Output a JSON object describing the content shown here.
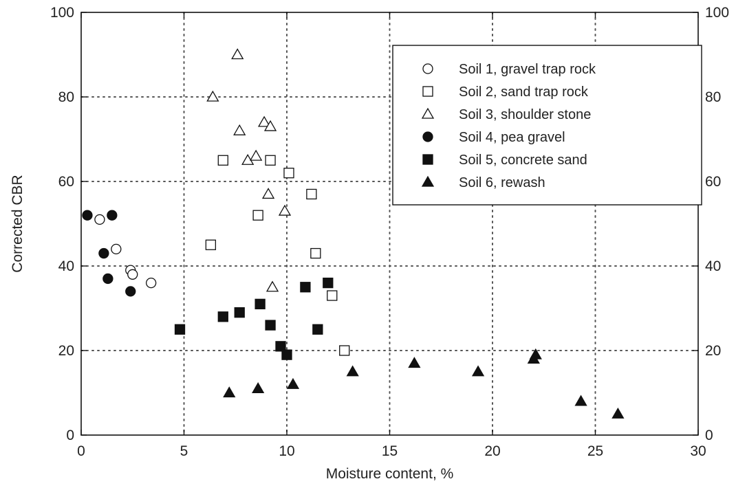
{
  "chart_data": {
    "type": "scatter",
    "title": "",
    "xlabel": "Moisture content, %",
    "ylabel": "Corrected CBR",
    "xlim": [
      0,
      30
    ],
    "ylim": [
      0,
      100
    ],
    "xticks": [
      0,
      5,
      10,
      15,
      20,
      25,
      30
    ],
    "yticks": [
      0,
      20,
      40,
      60,
      80,
      100
    ],
    "right_axis_ticks": [
      0,
      20,
      40,
      60,
      80,
      100
    ],
    "grid": true,
    "grid_style": "dotted",
    "legend_position": "top-right",
    "colors": {
      "ink": "#111111",
      "grid": "#555555",
      "background": "#ffffff"
    },
    "series": [
      {
        "name": "Soil 1, gravel trap rock",
        "marker": "circle-open",
        "points": [
          [
            0.9,
            51
          ],
          [
            1.7,
            44
          ],
          [
            2.4,
            39
          ],
          [
            2.5,
            38
          ],
          [
            3.4,
            36
          ]
        ]
      },
      {
        "name": "Soil 2, sand trap rock",
        "marker": "square-open",
        "points": [
          [
            6.3,
            45
          ],
          [
            6.9,
            65
          ],
          [
            8.6,
            52
          ],
          [
            9.2,
            65
          ],
          [
            10.1,
            62
          ],
          [
            11.2,
            57
          ],
          [
            11.4,
            43
          ],
          [
            12.2,
            33
          ],
          [
            12.8,
            20
          ]
        ]
      },
      {
        "name": "Soil 3, shoulder stone",
        "marker": "triangle-open",
        "points": [
          [
            6.4,
            80
          ],
          [
            7.6,
            90
          ],
          [
            7.7,
            72
          ],
          [
            8.1,
            65
          ],
          [
            8.5,
            66
          ],
          [
            8.9,
            74
          ],
          [
            9.1,
            57
          ],
          [
            9.2,
            73
          ],
          [
            9.3,
            35
          ],
          [
            9.9,
            53
          ]
        ]
      },
      {
        "name": "Soil 4, pea gravel",
        "marker": "circle-filled",
        "points": [
          [
            0.3,
            52
          ],
          [
            1.1,
            43
          ],
          [
            1.3,
            37
          ],
          [
            1.5,
            52
          ],
          [
            2.4,
            34
          ]
        ]
      },
      {
        "name": "Soil 5, concrete sand",
        "marker": "square-filled",
        "points": [
          [
            4.8,
            25
          ],
          [
            6.9,
            28
          ],
          [
            7.7,
            29
          ],
          [
            8.7,
            31
          ],
          [
            9.2,
            26
          ],
          [
            9.7,
            21
          ],
          [
            10.0,
            19
          ],
          [
            10.9,
            35
          ],
          [
            11.5,
            25
          ],
          [
            12.0,
            36
          ]
        ]
      },
      {
        "name": "Soil 6, rewash",
        "marker": "triangle-filled",
        "points": [
          [
            7.2,
            10
          ],
          [
            8.6,
            11
          ],
          [
            10.3,
            12
          ],
          [
            13.2,
            15
          ],
          [
            16.2,
            17
          ],
          [
            19.3,
            15
          ],
          [
            22.0,
            18
          ],
          [
            22.1,
            19
          ],
          [
            24.3,
            8
          ],
          [
            26.1,
            5
          ]
        ]
      }
    ]
  }
}
